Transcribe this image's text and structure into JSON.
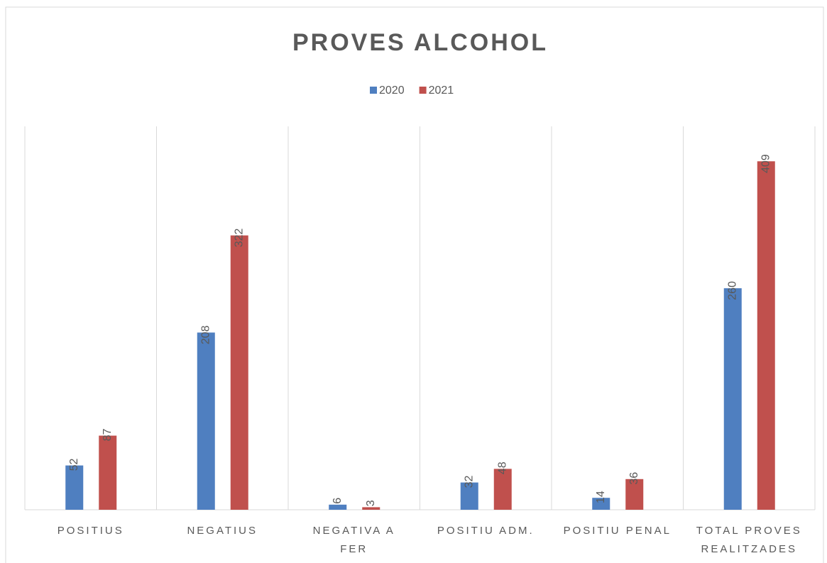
{
  "chart_data": {
    "type": "bar",
    "title": "PROVES ALCOHOL",
    "categories": [
      "POSITIUS",
      "NEGATIUS",
      "NEGATIVA A FER",
      "POSITIU ADM.",
      "POSITIU PENAL",
      "TOTAL PROVES REALITZADES"
    ],
    "series": [
      {
        "name": "2020",
        "color": "#4f7fc0",
        "values": [
          52,
          208,
          6,
          32,
          14,
          260
        ]
      },
      {
        "name": "2021",
        "color": "#c0504d",
        "values": [
          87,
          322,
          3,
          48,
          36,
          409
        ]
      }
    ],
    "ylim": [
      0,
      450
    ],
    "legend": "top"
  }
}
